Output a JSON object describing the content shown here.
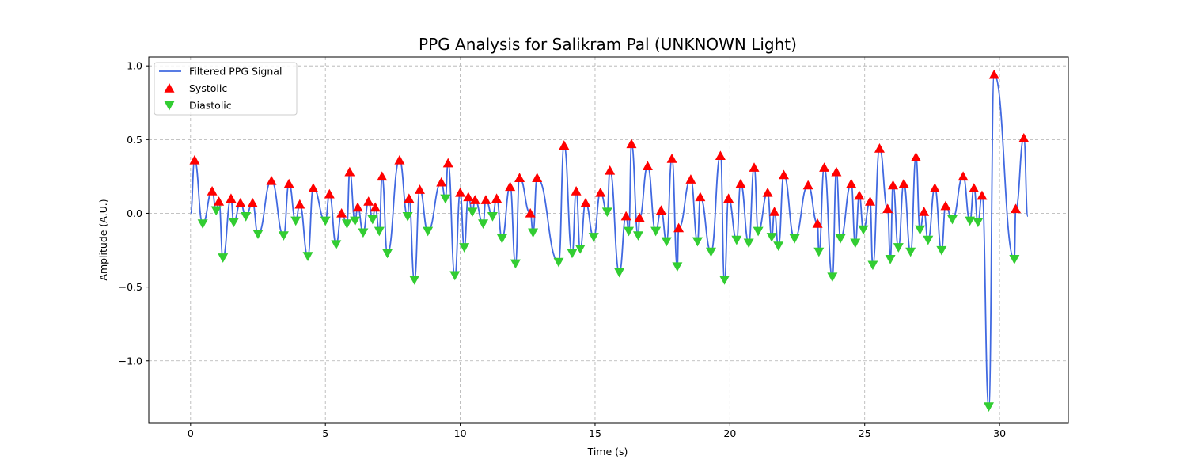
{
  "chart_data": {
    "type": "line",
    "title": "PPG Analysis for Salikram Pal (UNKNOWN Light)",
    "xlabel": "Time (s)",
    "ylabel": "Amplitude (A.U.)",
    "xlim": [
      -1.55,
      32.55
    ],
    "ylim": [
      -1.42,
      1.06
    ],
    "xticks": [
      0,
      5,
      10,
      15,
      20,
      25,
      30
    ],
    "xtick_labels": [
      "0",
      "5",
      "10",
      "15",
      "20",
      "25",
      "30"
    ],
    "yticks": [
      1.0,
      0.5,
      0.0,
      -0.5,
      -1.0
    ],
    "ytick_labels": [
      "1.0",
      "0.5",
      "0.0",
      "−0.5",
      "−1.0"
    ],
    "grid": true,
    "legend_position": "top-left",
    "colors": {
      "signal": "#4169e1",
      "systolic": "#ff0000",
      "diastolic": "#32cd32"
    },
    "legend": [
      {
        "label": "Filtered PPG Signal",
        "kind": "line",
        "color": "#4169e1"
      },
      {
        "label": "Systolic",
        "kind": "triangle-up",
        "color": "#ff0000"
      },
      {
        "label": "Diastolic",
        "kind": "triangle-down",
        "color": "#32cd32"
      }
    ],
    "series": [
      {
        "name": "Systolic",
        "marker": "triangle-up",
        "color": "#ff0000",
        "points": [
          [
            0.15,
            0.36
          ],
          [
            0.8,
            0.15
          ],
          [
            1.05,
            0.08
          ],
          [
            1.5,
            0.1
          ],
          [
            1.85,
            0.07
          ],
          [
            2.3,
            0.07
          ],
          [
            3.0,
            0.22
          ],
          [
            3.65,
            0.2
          ],
          [
            4.05,
            0.06
          ],
          [
            4.55,
            0.17
          ],
          [
            5.15,
            0.13
          ],
          [
            5.6,
            0.0
          ],
          [
            5.9,
            0.28
          ],
          [
            6.2,
            0.04
          ],
          [
            6.6,
            0.08
          ],
          [
            6.85,
            0.04
          ],
          [
            7.1,
            0.25
          ],
          [
            7.75,
            0.36
          ],
          [
            8.1,
            0.1
          ],
          [
            8.5,
            0.16
          ],
          [
            9.3,
            0.21
          ],
          [
            9.55,
            0.34
          ],
          [
            10.0,
            0.14
          ],
          [
            10.3,
            0.11
          ],
          [
            10.55,
            0.09
          ],
          [
            10.95,
            0.09
          ],
          [
            11.35,
            0.1
          ],
          [
            11.85,
            0.18
          ],
          [
            12.2,
            0.24
          ],
          [
            12.6,
            0.0
          ],
          [
            12.85,
            0.24
          ],
          [
            13.85,
            0.46
          ],
          [
            14.3,
            0.15
          ],
          [
            14.65,
            0.07
          ],
          [
            15.2,
            0.14
          ],
          [
            15.55,
            0.29
          ],
          [
            16.15,
            -0.02
          ],
          [
            16.35,
            0.47
          ],
          [
            16.65,
            -0.03
          ],
          [
            16.95,
            0.32
          ],
          [
            17.45,
            0.02
          ],
          [
            17.85,
            0.37
          ],
          [
            18.1,
            -0.1
          ],
          [
            18.55,
            0.23
          ],
          [
            18.9,
            0.11
          ],
          [
            19.65,
            0.39
          ],
          [
            19.95,
            0.1
          ],
          [
            20.4,
            0.2
          ],
          [
            20.9,
            0.31
          ],
          [
            21.4,
            0.14
          ],
          [
            21.65,
            0.01
          ],
          [
            22.0,
            0.26
          ],
          [
            22.9,
            0.19
          ],
          [
            23.25,
            -0.07
          ],
          [
            23.5,
            0.31
          ],
          [
            23.95,
            0.28
          ],
          [
            24.5,
            0.2
          ],
          [
            24.8,
            0.12
          ],
          [
            25.2,
            0.08
          ],
          [
            25.55,
            0.44
          ],
          [
            25.85,
            0.03
          ],
          [
            26.05,
            0.19
          ],
          [
            26.45,
            0.2
          ],
          [
            26.9,
            0.38
          ],
          [
            27.2,
            0.01
          ],
          [
            27.6,
            0.17
          ],
          [
            28.0,
            0.05
          ],
          [
            28.65,
            0.25
          ],
          [
            29.05,
            0.17
          ],
          [
            29.35,
            0.12
          ],
          [
            29.8,
            0.94
          ],
          [
            30.6,
            0.03
          ],
          [
            30.9,
            0.51
          ]
        ]
      },
      {
        "name": "Diastolic",
        "marker": "triangle-down",
        "color": "#32cd32",
        "points": [
          [
            0.45,
            -0.07
          ],
          [
            0.95,
            0.02
          ],
          [
            1.2,
            -0.3
          ],
          [
            1.6,
            -0.06
          ],
          [
            2.05,
            -0.02
          ],
          [
            2.5,
            -0.14
          ],
          [
            3.45,
            -0.15
          ],
          [
            3.9,
            -0.05
          ],
          [
            4.35,
            -0.29
          ],
          [
            5.0,
            -0.05
          ],
          [
            5.4,
            -0.21
          ],
          [
            5.8,
            -0.07
          ],
          [
            6.1,
            -0.05
          ],
          [
            6.4,
            -0.13
          ],
          [
            6.75,
            -0.04
          ],
          [
            7.0,
            -0.12
          ],
          [
            7.3,
            -0.27
          ],
          [
            8.05,
            -0.02
          ],
          [
            8.3,
            -0.45
          ],
          [
            8.8,
            -0.12
          ],
          [
            9.45,
            0.1
          ],
          [
            9.8,
            -0.42
          ],
          [
            10.15,
            -0.23
          ],
          [
            10.45,
            0.01
          ],
          [
            10.85,
            -0.07
          ],
          [
            11.2,
            -0.02
          ],
          [
            11.55,
            -0.17
          ],
          [
            12.05,
            -0.34
          ],
          [
            12.7,
            -0.13
          ],
          [
            13.65,
            -0.33
          ],
          [
            14.15,
            -0.27
          ],
          [
            14.45,
            -0.24
          ],
          [
            14.95,
            -0.16
          ],
          [
            15.45,
            0.01
          ],
          [
            15.9,
            -0.4
          ],
          [
            16.25,
            -0.12
          ],
          [
            16.6,
            -0.15
          ],
          [
            17.25,
            -0.12
          ],
          [
            17.65,
            -0.19
          ],
          [
            18.05,
            -0.36
          ],
          [
            18.8,
            -0.19
          ],
          [
            19.3,
            -0.26
          ],
          [
            19.8,
            -0.45
          ],
          [
            20.25,
            -0.18
          ],
          [
            20.7,
            -0.2
          ],
          [
            21.05,
            -0.12
          ],
          [
            21.55,
            -0.16
          ],
          [
            21.8,
            -0.22
          ],
          [
            22.4,
            -0.17
          ],
          [
            23.3,
            -0.26
          ],
          [
            23.8,
            -0.43
          ],
          [
            24.1,
            -0.17
          ],
          [
            24.65,
            -0.2
          ],
          [
            24.95,
            -0.11
          ],
          [
            25.3,
            -0.35
          ],
          [
            25.95,
            -0.31
          ],
          [
            26.25,
            -0.23
          ],
          [
            26.7,
            -0.26
          ],
          [
            27.05,
            -0.11
          ],
          [
            27.35,
            -0.18
          ],
          [
            27.85,
            -0.25
          ],
          [
            28.25,
            -0.04
          ],
          [
            28.9,
            -0.05
          ],
          [
            29.2,
            -0.06
          ],
          [
            29.6,
            -1.31
          ],
          [
            30.55,
            -0.31
          ]
        ]
      },
      {
        "name": "Filtered PPG Signal",
        "marker": "line",
        "color": "#4169e1",
        "x_start": 0.0,
        "x_end": 31.05
      }
    ]
  }
}
